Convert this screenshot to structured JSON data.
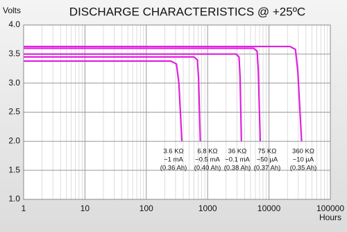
{
  "chart_data": {
    "type": "line",
    "title": "DISCHARGE CHARACTERISTICS @ +25ºC",
    "y_label": "Volts",
    "x_label": "Hours",
    "x_scale": "log",
    "grid": true,
    "minor_grid": true,
    "xlim": [
      1,
      100000
    ],
    "xticks": [
      1,
      10,
      100,
      1000,
      10000,
      100000
    ],
    "ylim": [
      1.0,
      4.0
    ],
    "yticks": [
      {
        "value": 1.0,
        "label": "1.0"
      },
      {
        "value": 1.5,
        "label": "1.5"
      },
      {
        "value": 2.0,
        "label": "2.0"
      },
      {
        "value": 2.5,
        "label": "2.5"
      },
      {
        "value": 3.0,
        "label": "3.0"
      },
      {
        "value": 3.5,
        "label": "3.5"
      },
      {
        "value": 4.0,
        "label": "4.0"
      }
    ],
    "series": [
      {
        "name": "3.6 KΩ",
        "current": "~1 mA",
        "capacity": "(0.36 Ah)",
        "color": "#e020e0",
        "x": [
          1,
          250,
          310,
          340,
          380
        ],
        "values": [
          3.38,
          3.38,
          3.33,
          3.0,
          2.0
        ]
      },
      {
        "name": "6.8 KΩ",
        "current": "~0.5 mA",
        "capacity": "(0.40 Ah)",
        "color": "#e020e0",
        "x": [
          1,
          600,
          680,
          710,
          760
        ],
        "values": [
          3.45,
          3.45,
          3.4,
          3.1,
          2.0
        ]
      },
      {
        "name": "36 KΩ",
        "current": "~0.1 mA",
        "capacity": "(0.38 Ah)",
        "color": "#e020e0",
        "x": [
          1,
          2900,
          3250,
          3380,
          3550
        ],
        "values": [
          3.5,
          3.5,
          3.45,
          3.1,
          2.0
        ]
      },
      {
        "name": "75 KΩ",
        "current": "~50 µA",
        "capacity": "(0.37 Ah)",
        "color": "#e020e0",
        "x": [
          1,
          5600,
          6400,
          6700,
          7200
        ],
        "values": [
          3.6,
          3.6,
          3.55,
          3.2,
          2.0
        ]
      },
      {
        "name": "360 KΩ",
        "current": "~10 µA",
        "capacity": "(0.35 Ah)",
        "color": "#e020e0",
        "x": [
          1,
          22000,
          27000,
          29500,
          34000
        ],
        "values": [
          3.63,
          3.63,
          3.58,
          3.2,
          2.0
        ]
      }
    ]
  }
}
